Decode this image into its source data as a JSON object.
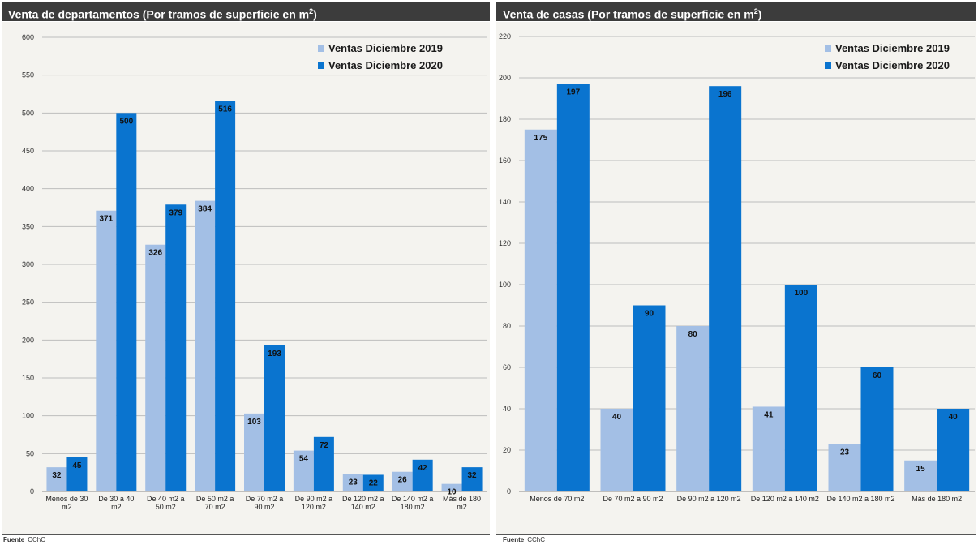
{
  "panels": [
    {
      "header": {
        "title": "Venta de departamentos (Por tramos de superficie en m",
        "sup": "2",
        "close": ")"
      },
      "source": {
        "label": "Fuente",
        "value": "CChC"
      }
    },
    {
      "header": {
        "title": "Venta de casas (Por tramos de superficie en m",
        "sup": "2",
        "close": ")"
      },
      "source": {
        "label": "Fuente",
        "value": "CChC"
      }
    }
  ],
  "colors": {
    "series_2019": "#a3bfe5",
    "series_2020": "#0a74cf",
    "grid": "#bdbdbd"
  },
  "chart_data": [
    {
      "type": "bar",
      "title": "Venta de departamentos (Por tramos de superficie en m2)",
      "categories": [
        [
          "Menos de 30",
          "m2"
        ],
        [
          "De 30 a 40",
          "m2"
        ],
        [
          "De 40 m2 a",
          "50 m2"
        ],
        [
          "De 50 m2 a",
          "70 m2"
        ],
        [
          "De 70 m2 a",
          "90 m2"
        ],
        [
          "De 90 m2 a",
          "120 m2"
        ],
        [
          "De 120 m2 a",
          "140 m2"
        ],
        [
          "De 140 m2 a",
          "180 m2"
        ],
        [
          "Más de 180",
          "m2"
        ]
      ],
      "series": [
        {
          "name": "Ventas Diciembre 2019",
          "values": [
            32,
            371,
            326,
            384,
            103,
            54,
            23,
            26,
            10
          ]
        },
        {
          "name": "Ventas Diciembre 2020",
          "values": [
            45,
            500,
            379,
            516,
            193,
            72,
            22,
            42,
            32
          ]
        }
      ],
      "ylim": [
        0,
        600
      ],
      "yticks": [
        0,
        50,
        100,
        150,
        200,
        250,
        300,
        350,
        400,
        450,
        500,
        550,
        600
      ],
      "grid": true,
      "legend": "top-right"
    },
    {
      "type": "bar",
      "title": "Venta de casas (Por tramos de superficie en m2)",
      "categories": [
        [
          "Menos de 70 m2"
        ],
        [
          "De 70 m2 a 90 m2"
        ],
        [
          "De 90 m2 a 120 m2"
        ],
        [
          "De 120 m2 a 140 m2"
        ],
        [
          "De 140 m2 a 180 m2"
        ],
        [
          "Más de 180 m2"
        ]
      ],
      "series": [
        {
          "name": "Ventas Diciembre 2019",
          "values": [
            175,
            40,
            80,
            41,
            23,
            15
          ]
        },
        {
          "name": "Ventas Diciembre 2020",
          "values": [
            197,
            90,
            196,
            100,
            60,
            40
          ]
        }
      ],
      "ylim": [
        0,
        220
      ],
      "yticks": [
        0,
        20,
        40,
        60,
        80,
        100,
        120,
        140,
        160,
        180,
        200,
        220
      ],
      "grid": true,
      "legend": "top-right"
    }
  ]
}
